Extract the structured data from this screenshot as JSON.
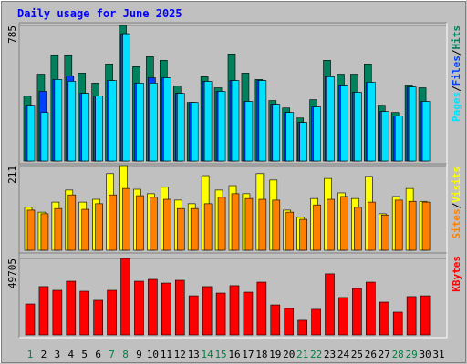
{
  "chart_data": [
    {
      "type": "bar",
      "title": "Daily usage for June 2025",
      "categories": [
        "1",
        "2",
        "3",
        "4",
        "5",
        "6",
        "7",
        "8",
        "9",
        "10",
        "11",
        "12",
        "13",
        "14",
        "15",
        "16",
        "17",
        "18",
        "19",
        "20",
        "21",
        "22",
        "23",
        "24",
        "25",
        "26",
        "27",
        "28",
        "29",
        "30",
        "31"
      ],
      "category_colors": [
        "#008040",
        "#000000",
        "#000000",
        "#000000",
        "#000000",
        "#000000",
        "#008040",
        "#008040",
        "#000000",
        "#000000",
        "#000000",
        "#000000",
        "#000000",
        "#008040",
        "#008040",
        "#000000",
        "#000000",
        "#000000",
        "#000000",
        "#000000",
        "#008040",
        "#008040",
        "#000000",
        "#000000",
        "#000000",
        "#000000",
        "#000000",
        "#008040",
        "#008040",
        "#000000",
        "#000000"
      ],
      "ylim": [
        0,
        785
      ],
      "yticks": [
        785
      ],
      "legend_separator": "/",
      "series": [
        {
          "name": "Hits",
          "color": "#00805c",
          "values": [
            377,
            503,
            615,
            615,
            509,
            451,
            562,
            785,
            546,
            604,
            583,
            435,
            339,
            488,
            424,
            620,
            509,
            472,
            350,
            307,
            249,
            355,
            583,
            503,
            503,
            562,
            323,
            281,
            440,
            424,
            null
          ]
        },
        {
          "name": "Files",
          "color": "#0040ff",
          "values": [
            323,
            403,
            472,
            493,
            392,
            376,
            466,
            737,
            451,
            482,
            482,
            392,
            339,
            461,
            403,
            466,
            345,
            466,
            329,
            281,
            223,
            313,
            488,
            440,
            398,
            456,
            286,
            260,
            429,
            345,
            null
          ]
        },
        {
          "name": "Pages",
          "color": "#00e0ff",
          "values": [
            323,
            281,
            472,
            461,
            392,
            376,
            466,
            737,
            451,
            451,
            482,
            392,
            339,
            461,
            403,
            466,
            345,
            466,
            329,
            281,
            223,
            313,
            488,
            440,
            398,
            456,
            286,
            260,
            429,
            345,
            null
          ]
        }
      ]
    },
    {
      "type": "bar",
      "ylim": [
        0,
        211
      ],
      "yticks": [
        211
      ],
      "legend_separator": "/",
      "series": [
        {
          "name": "Visits",
          "color": "#ffff00",
          "values": [
            107,
            95,
            120,
            150,
            120,
            127,
            191,
            211,
            152,
            141,
            157,
            125,
            116,
            186,
            150,
            161,
            141,
            191,
            175,
            100,
            82,
            129,
            179,
            143,
            129,
            184,
            91,
            134,
            154,
            122,
            null
          ]
        },
        {
          "name": "Sites",
          "color": "#ff8000",
          "values": [
            100,
            91,
            104,
            138,
            102,
            116,
            138,
            154,
            136,
            132,
            127,
            104,
            104,
            116,
            132,
            141,
            129,
            127,
            125,
            95,
            77,
            113,
            127,
            134,
            107,
            120,
            88,
            125,
            122,
            120,
            null
          ]
        }
      ]
    },
    {
      "type": "bar",
      "ylim": [
        0,
        49705
      ],
      "yticks": [
        49705
      ],
      "series": [
        {
          "name": "KBytes",
          "color": "#ff0000",
          "values": [
            20100,
            31400,
            29000,
            34900,
            28400,
            22500,
            29000,
            49705,
            34900,
            36100,
            33700,
            35500,
            25400,
            31400,
            27200,
            32000,
            27800,
            34300,
            19500,
            17200,
            9500,
            16600,
            39700,
            24300,
            30200,
            34300,
            21300,
            14800,
            24900,
            25400,
            null
          ]
        }
      ]
    }
  ]
}
